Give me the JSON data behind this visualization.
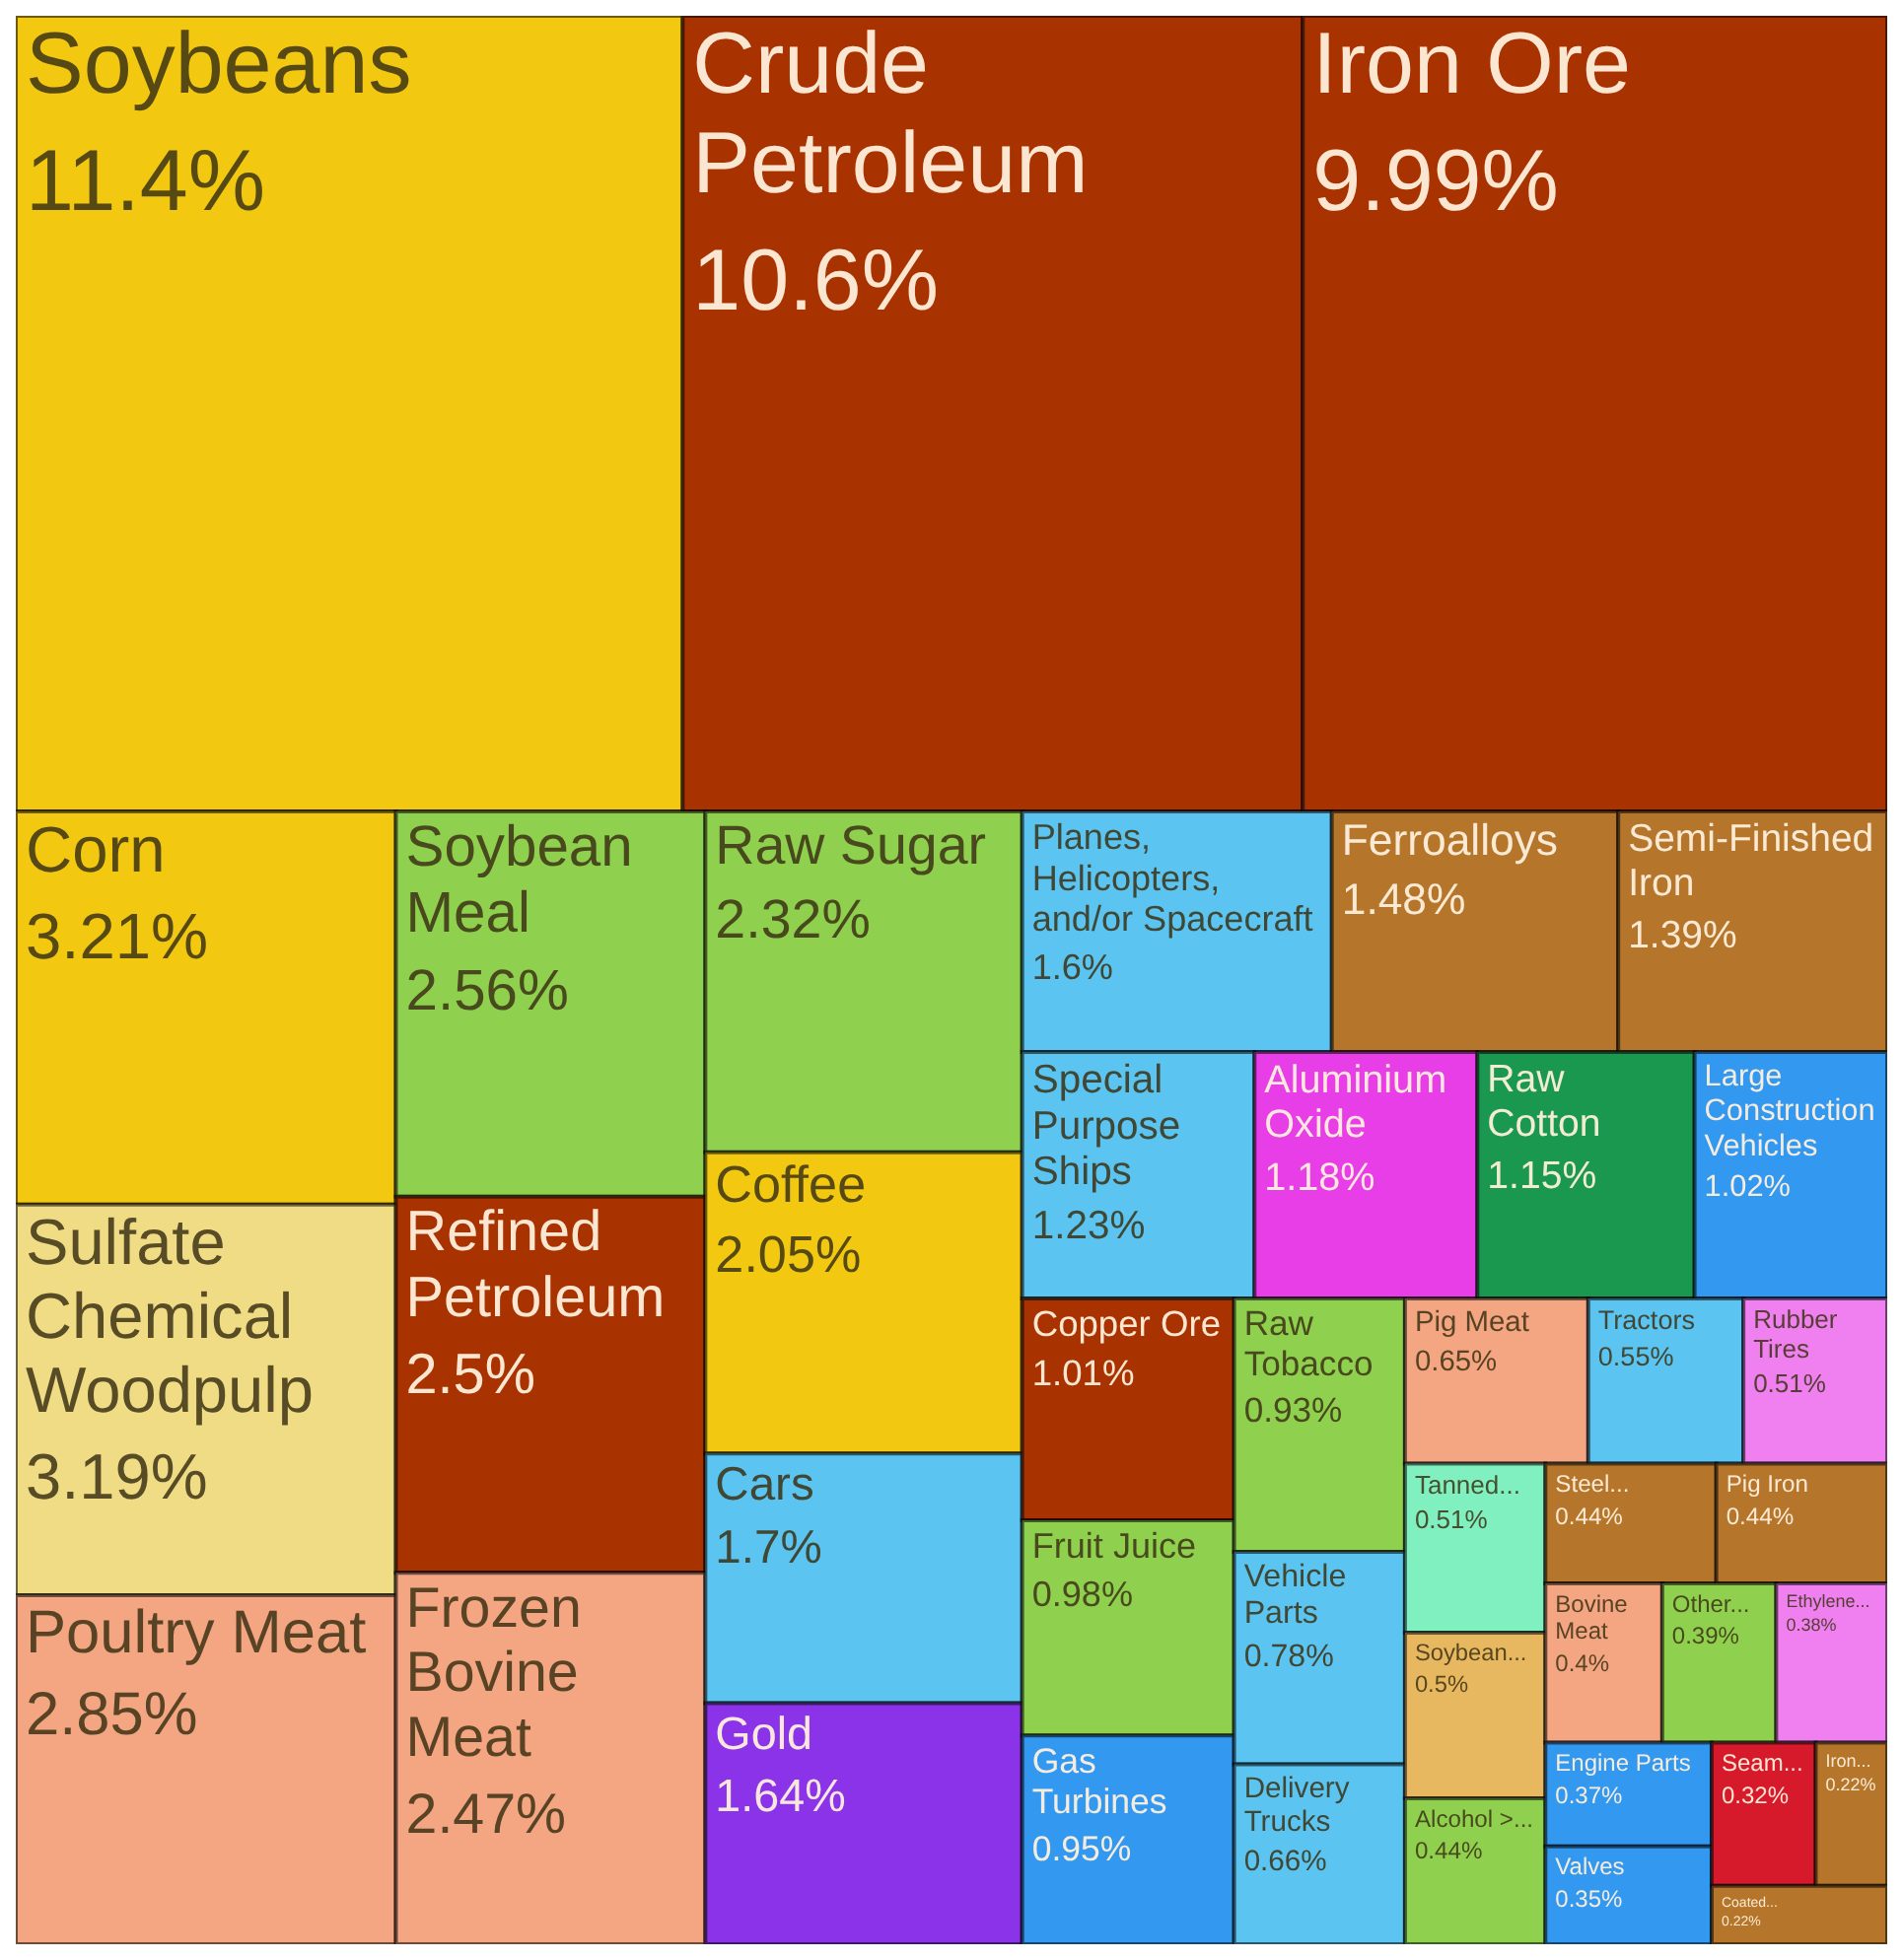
{
  "chart_data": {
    "type": "other",
    "categories": [
      "Soybeans",
      "Crude Petroleum",
      "Iron Ore",
      "Corn",
      "Sulfate Chemical Woodpulp",
      "Poultry Meat",
      "Soybean Meal",
      "Refined Petroleum",
      "Frozen Bovine Meat",
      "Raw Sugar",
      "Coffee",
      "Cars",
      "Gold",
      "Planes, Helicopters, and/or Spacecraft",
      "Ferroalloys",
      "Semi-Finished Iron",
      "Special Purpose Ships",
      "Aluminium Oxide",
      "Raw Cotton",
      "Large Construction Vehicles",
      "Copper Ore",
      "Fruit Juice",
      "Gas Turbines",
      "Raw Tobacco",
      "Vehicle Parts",
      "Delivery Trucks",
      "Pig Meat",
      "Tractors",
      "Rubber Tires",
      "Tanned...",
      "Soybean...",
      "Alcohol >...",
      "Steel...",
      "Pig Iron",
      "Bovine Meat",
      "Other...",
      "Ethylene...",
      "Engine Parts",
      "Valves",
      "Seam...",
      "Iron...",
      "Coated..."
    ],
    "values": [
      11.4,
      10.6,
      9.99,
      3.21,
      3.19,
      2.85,
      2.56,
      2.5,
      2.47,
      2.32,
      2.05,
      1.7,
      1.64,
      1.6,
      1.48,
      1.39,
      1.23,
      1.18,
      1.15,
      1.02,
      1.01,
      0.98,
      0.95,
      0.93,
      0.78,
      0.66,
      0.65,
      0.55,
      0.51,
      0.51,
      0.5,
      0.44,
      0.44,
      0.44,
      0.4,
      0.39,
      0.38,
      0.37,
      0.35,
      0.32,
      0.22,
      0.22
    ],
    "value_labels": [
      "11.4%",
      "10.6%",
      "9.99%",
      "3.21%",
      "3.19%",
      "2.85%",
      "2.56%",
      "2.5%",
      "2.47%",
      "2.32%",
      "2.05%",
      "1.7%",
      "1.64%",
      "1.6%",
      "1.48%",
      "1.39%",
      "1.23%",
      "1.18%",
      "1.15%",
      "1.02%",
      "1.01%",
      "0.98%",
      "0.95%",
      "0.93%",
      "0.78%",
      "0.66%",
      "0.65%",
      "0.55%",
      "0.51%",
      "0.51%",
      "0.5%",
      "0.44%",
      "0.44%",
      "0.44%",
      "0.4%",
      "0.39%",
      "0.38%",
      "0.37%",
      "0.35%",
      "0.32%",
      "0.22%",
      "0.22%"
    ],
    "colors": [
      "#f2c811",
      "#a83300",
      "#a83300",
      "#f2c811",
      "#f0dc84",
      "#f4a582",
      "#8fd14f",
      "#a83300",
      "#f4a582",
      "#8fd14f",
      "#f2c811",
      "#5bc4f0",
      "#8a33e8",
      "#5bc4f0",
      "#b5762c",
      "#b5762c",
      "#5bc4f0",
      "#e83ee8",
      "#1a9850",
      "#3399f0",
      "#a83300",
      "#8fd14f",
      "#3399f0",
      "#8fd14f",
      "#5bc4f0",
      "#5bc4f0",
      "#f4a582",
      "#5bc4f0",
      "#f080f0",
      "#80f0c0",
      "#e8b860",
      "#8fd14f",
      "#b5762c",
      "#b5762c",
      "#f4a582",
      "#8fd14f",
      "#f080f0",
      "#3399f0",
      "#3399f0",
      "#d7192c",
      "#b5762c",
      "#b5762c"
    ]
  }
}
